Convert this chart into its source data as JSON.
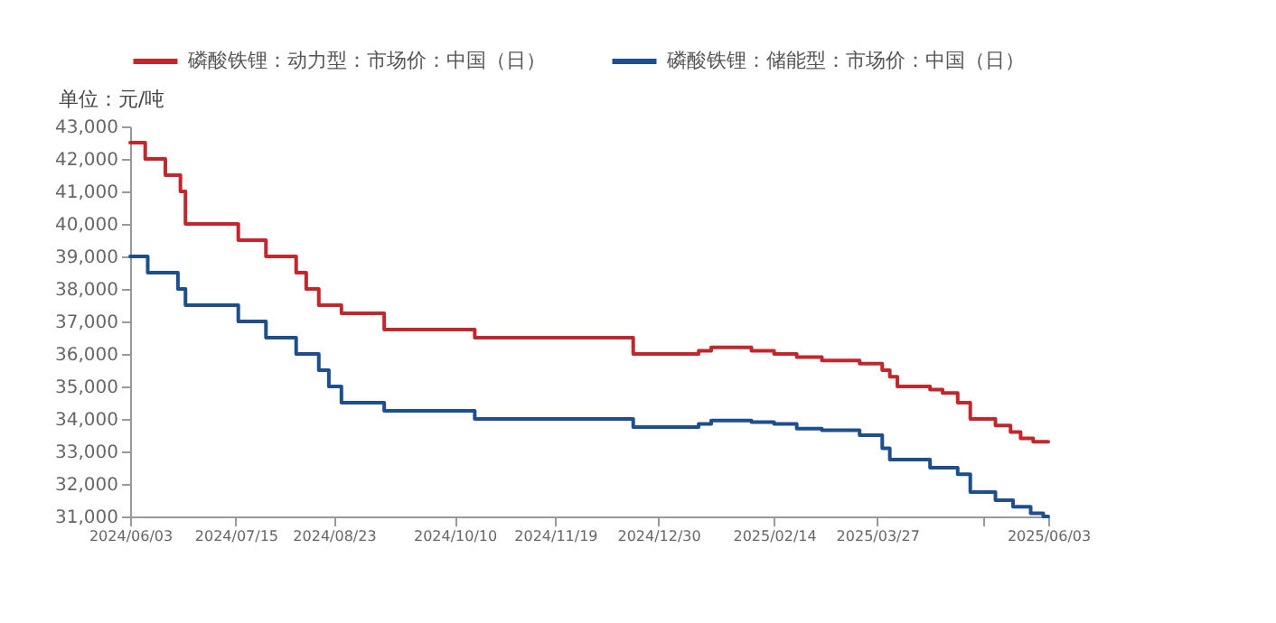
{
  "chart_data": {
    "type": "step",
    "ylabel": "单位：元/吨",
    "legend": "top",
    "grid": false,
    "xlim": [
      "2024-06-03",
      "2025-06-03"
    ],
    "xticks": [
      {
        "value": "2024-06-03",
        "label": "2024/06/03"
      },
      {
        "value": "2024-07-15",
        "label": "2024/07/15"
      },
      {
        "value": "2024-08-23",
        "label": "2024/08/23"
      },
      {
        "value": "2024-10-10",
        "label": "2024/10/10"
      },
      {
        "value": "2024-11-19",
        "label": "2024/11/19"
      },
      {
        "value": "2024-12-30",
        "label": "2024/12/30"
      },
      {
        "value": "2025-02-14",
        "label": "2025/02/14"
      },
      {
        "value": "2025-03-27",
        "label": "2025/03/27"
      },
      {
        "value": "2025-05-08",
        "label": null
      },
      {
        "value": "2025-06-03",
        "label": "2025/06/03"
      }
    ],
    "ylim": [
      31000,
      43000
    ],
    "yticks": [
      {
        "value": 31000,
        "label": "31,000"
      },
      {
        "value": 32000,
        "label": "32,000"
      },
      {
        "value": 33000,
        "label": "33,000"
      },
      {
        "value": 34000,
        "label": "34,000"
      },
      {
        "value": 35000,
        "label": "35,000"
      },
      {
        "value": 36000,
        "label": "36,000"
      },
      {
        "value": 37000,
        "label": "37,000"
      },
      {
        "value": 38000,
        "label": "38,000"
      },
      {
        "value": 39000,
        "label": "39,000"
      },
      {
        "value": 40000,
        "label": "40,000"
      },
      {
        "value": 41000,
        "label": "41,000"
      },
      {
        "value": 42000,
        "label": "42,000"
      },
      {
        "value": 43000,
        "label": "43,000"
      }
    ],
    "series": [
      {
        "name": "磷酸铁锂：动力型：市场价：中国（日）",
        "color": "#c0282d",
        "x": [
          "2024-06-03",
          "2024-06-09",
          "2024-06-17",
          "2024-06-23",
          "2024-06-25",
          "2024-07-16",
          "2024-07-27",
          "2024-08-08",
          "2024-08-12",
          "2024-08-17",
          "2024-08-26",
          "2024-09-12",
          "2024-10-18",
          "2024-12-20",
          "2025-01-15",
          "2025-01-20",
          "2025-02-05",
          "2025-02-14",
          "2025-02-23",
          "2025-03-05",
          "2025-03-20",
          "2025-03-29",
          "2025-04-01",
          "2025-04-04",
          "2025-04-17",
          "2025-04-22",
          "2025-04-28",
          "2025-05-03",
          "2025-05-13",
          "2025-05-19",
          "2025-05-23",
          "2025-05-28",
          "2025-06-03"
        ],
        "values": [
          42500,
          42000,
          41500,
          41000,
          40000,
          39500,
          39000,
          38500,
          38000,
          37500,
          37250,
          36750,
          36500,
          36000,
          36100,
          36200,
          36100,
          36000,
          35900,
          35800,
          35700,
          35500,
          35300,
          35000,
          34900,
          34800,
          34500,
          34000,
          33800,
          33600,
          33400,
          33300,
          33300
        ]
      },
      {
        "name": "磷酸铁锂：储能型：市场价：中国（日）",
        "color": "#1f4e8c",
        "x": [
          "2024-06-03",
          "2024-06-10",
          "2024-06-22",
          "2024-06-25",
          "2024-07-16",
          "2024-07-27",
          "2024-08-08",
          "2024-08-17",
          "2024-08-21",
          "2024-08-26",
          "2024-09-12",
          "2024-10-18",
          "2024-12-20",
          "2025-01-15",
          "2025-01-20",
          "2025-02-05",
          "2025-02-14",
          "2025-02-23",
          "2025-03-05",
          "2025-03-20",
          "2025-03-29",
          "2025-04-01",
          "2025-04-17",
          "2025-04-28",
          "2025-05-03",
          "2025-05-13",
          "2025-05-20",
          "2025-05-27",
          "2025-06-01",
          "2025-06-03"
        ],
        "values": [
          39000,
          38500,
          38000,
          37500,
          37000,
          36500,
          36000,
          35500,
          35000,
          34500,
          34250,
          34000,
          33750,
          33850,
          33950,
          33900,
          33850,
          33700,
          33650,
          33500,
          33100,
          32750,
          32500,
          32300,
          31750,
          31500,
          31300,
          31100,
          31000,
          31000
        ]
      }
    ]
  }
}
